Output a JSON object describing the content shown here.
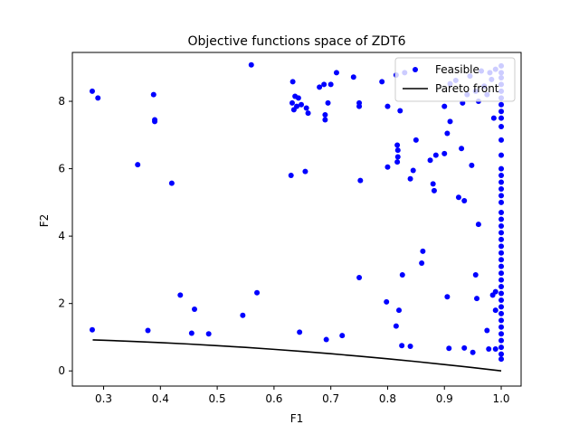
{
  "chart_data": {
    "type": "scatter",
    "title": "Objective functions space of ZDT6",
    "xlabel": "F1",
    "ylabel": "F2",
    "xlim": [
      0.245,
      1.035
    ],
    "ylim": [
      -0.45,
      9.45
    ],
    "xticks": [
      0.3,
      0.4,
      0.5,
      0.6,
      0.7,
      0.8,
      0.9,
      1.0
    ],
    "yticks": [
      0,
      2,
      4,
      6,
      8
    ],
    "grid": false,
    "legend_position": "top-right",
    "series": [
      {
        "name": "Feasible",
        "kind": "scatter",
        "color": "#0000ff",
        "points": [
          [
            0.28,
            8.3
          ],
          [
            0.29,
            8.1
          ],
          [
            0.28,
            1.22
          ],
          [
            0.36,
            6.12
          ],
          [
            0.378,
            1.2
          ],
          [
            0.388,
            8.2
          ],
          [
            0.39,
            7.45
          ],
          [
            0.39,
            7.4
          ],
          [
            0.42,
            5.57
          ],
          [
            0.435,
            2.25
          ],
          [
            0.455,
            1.12
          ],
          [
            0.46,
            1.83
          ],
          [
            0.485,
            1.1
          ],
          [
            0.545,
            1.65
          ],
          [
            0.56,
            9.08
          ],
          [
            0.57,
            2.32
          ],
          [
            0.63,
            5.8
          ],
          [
            0.632,
            7.95
          ],
          [
            0.633,
            8.58
          ],
          [
            0.635,
            7.75
          ],
          [
            0.637,
            8.15
          ],
          [
            0.64,
            7.85
          ],
          [
            0.643,
            8.1
          ],
          [
            0.645,
            1.15
          ],
          [
            0.648,
            7.9
          ],
          [
            0.655,
            5.92
          ],
          [
            0.657,
            7.8
          ],
          [
            0.66,
            7.65
          ],
          [
            0.68,
            8.42
          ],
          [
            0.688,
            8.5
          ],
          [
            0.69,
            7.6
          ],
          [
            0.69,
            7.45
          ],
          [
            0.692,
            0.93
          ],
          [
            0.695,
            7.95
          ],
          [
            0.7,
            8.5
          ],
          [
            0.71,
            8.85
          ],
          [
            0.72,
            1.05
          ],
          [
            0.74,
            8.72
          ],
          [
            0.75,
            7.85
          ],
          [
            0.75,
            7.95
          ],
          [
            0.75,
            2.77
          ],
          [
            0.752,
            5.65
          ],
          [
            0.79,
            8.58
          ],
          [
            0.798,
            2.05
          ],
          [
            0.8,
            6.05
          ],
          [
            0.8,
            7.85
          ],
          [
            0.815,
            8.78
          ],
          [
            0.815,
            1.33
          ],
          [
            0.817,
            6.2
          ],
          [
            0.817,
            6.7
          ],
          [
            0.818,
            6.55
          ],
          [
            0.818,
            6.35
          ],
          [
            0.82,
            1.8
          ],
          [
            0.822,
            7.72
          ],
          [
            0.825,
            0.75
          ],
          [
            0.826,
            2.85
          ],
          [
            0.83,
            8.85
          ],
          [
            0.84,
            5.7
          ],
          [
            0.84,
            0.73
          ],
          [
            0.845,
            5.95
          ],
          [
            0.85,
            6.85
          ],
          [
            0.86,
            3.2
          ],
          [
            0.862,
            3.55
          ],
          [
            0.875,
            6.25
          ],
          [
            0.88,
            5.55
          ],
          [
            0.882,
            5.35
          ],
          [
            0.885,
            6.4
          ],
          [
            0.9,
            7.85
          ],
          [
            0.9,
            6.45
          ],
          [
            0.905,
            2.2
          ],
          [
            0.905,
            7.05
          ],
          [
            0.908,
            0.67
          ],
          [
            0.91,
            8.52
          ],
          [
            0.91,
            7.4
          ],
          [
            0.92,
            8.62
          ],
          [
            0.925,
            5.15
          ],
          [
            0.93,
            6.6
          ],
          [
            0.932,
            7.95
          ],
          [
            0.935,
            0.68
          ],
          [
            0.935,
            5.05
          ],
          [
            0.94,
            8.2
          ],
          [
            0.945,
            8.75
          ],
          [
            0.948,
            6.1
          ],
          [
            0.95,
            0.55
          ],
          [
            0.955,
            2.85
          ],
          [
            0.955,
            8.3
          ],
          [
            0.957,
            2.15
          ],
          [
            0.96,
            4.35
          ],
          [
            0.96,
            8.0
          ],
          [
            0.965,
            8.9
          ],
          [
            0.97,
            8.45
          ],
          [
            0.975,
            1.2
          ],
          [
            0.975,
            8.2
          ],
          [
            0.978,
            0.65
          ],
          [
            0.98,
            8.85
          ],
          [
            0.983,
            8.65
          ],
          [
            0.985,
            2.25
          ],
          [
            0.987,
            7.5
          ],
          [
            0.99,
            8.95
          ],
          [
            0.99,
            2.35
          ],
          [
            0.99,
            1.8
          ],
          [
            0.99,
            0.65
          ],
          [
            1.0,
            9.05
          ],
          [
            1.0,
            8.85
          ],
          [
            1.0,
            8.7
          ],
          [
            1.0,
            8.5
          ],
          [
            1.0,
            8.3
          ],
          [
            1.0,
            8.1
          ],
          [
            1.0,
            7.9
          ],
          [
            1.0,
            7.7
          ],
          [
            1.0,
            7.5
          ],
          [
            1.0,
            7.25
          ],
          [
            1.0,
            6.85
          ],
          [
            1.0,
            6.4
          ],
          [
            1.0,
            6.0
          ],
          [
            1.0,
            5.8
          ],
          [
            1.0,
            5.6
          ],
          [
            1.0,
            5.4
          ],
          [
            1.0,
            5.2
          ],
          [
            1.0,
            5.0
          ],
          [
            1.0,
            4.7
          ],
          [
            1.0,
            4.5
          ],
          [
            1.0,
            4.3
          ],
          [
            1.0,
            4.1
          ],
          [
            1.0,
            3.9
          ],
          [
            1.0,
            3.7
          ],
          [
            1.0,
            3.5
          ],
          [
            1.0,
            3.3
          ],
          [
            1.0,
            3.1
          ],
          [
            1.0,
            2.9
          ],
          [
            1.0,
            2.7
          ],
          [
            1.0,
            2.5
          ],
          [
            1.0,
            2.3
          ],
          [
            1.0,
            2.1
          ],
          [
            1.0,
            1.9
          ],
          [
            1.0,
            1.7
          ],
          [
            1.0,
            1.5
          ],
          [
            1.0,
            1.3
          ],
          [
            1.0,
            1.1
          ],
          [
            1.0,
            0.9
          ],
          [
            1.0,
            0.7
          ],
          [
            1.0,
            0.5
          ],
          [
            1.0,
            0.35
          ]
        ]
      },
      {
        "name": "Pareto front",
        "kind": "line",
        "color": "#000000",
        "points": [
          [
            0.2808,
            0.9212
          ],
          [
            0.3,
            0.91
          ],
          [
            0.35,
            0.8775
          ],
          [
            0.4,
            0.84
          ],
          [
            0.45,
            0.7975
          ],
          [
            0.5,
            0.75
          ],
          [
            0.55,
            0.6975
          ],
          [
            0.6,
            0.64
          ],
          [
            0.65,
            0.5775
          ],
          [
            0.7,
            0.51
          ],
          [
            0.75,
            0.4375
          ],
          [
            0.8,
            0.36
          ],
          [
            0.85,
            0.2775
          ],
          [
            0.9,
            0.19
          ],
          [
            0.95,
            0.0975
          ],
          [
            1.0,
            0.0
          ]
        ]
      }
    ]
  }
}
